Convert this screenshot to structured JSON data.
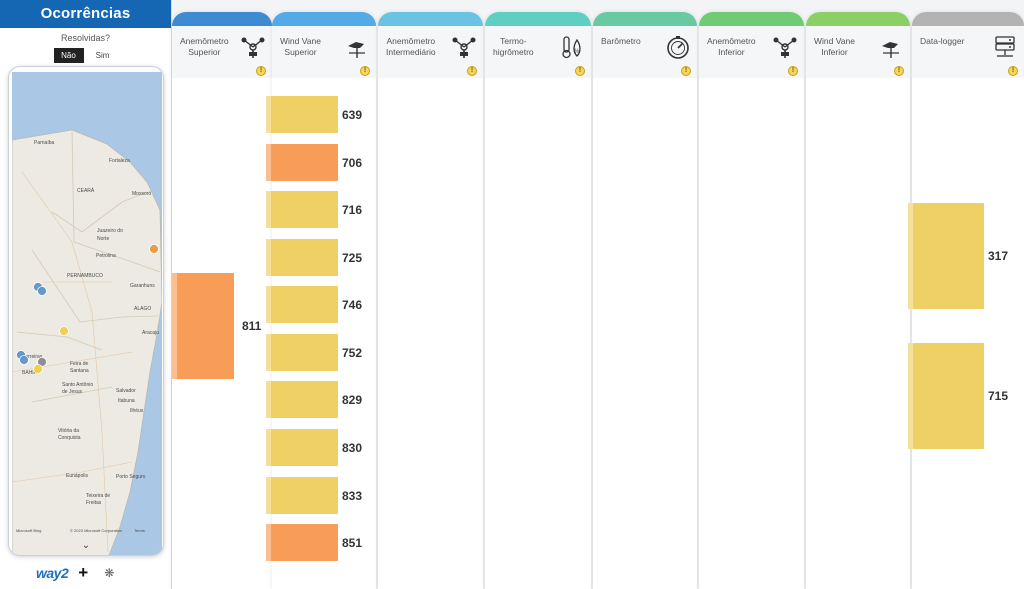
{
  "panel": {
    "title": "Ocorrências",
    "filter_label": "Resolvidas?",
    "toggle": {
      "no": "Não",
      "yes": "Sim"
    },
    "brand": "way2"
  },
  "map": {
    "labels": [
      "Parnaíba",
      "Fortaleza",
      "Mossoró",
      "CEARÁ",
      "Juazeiro do",
      "Norte",
      "PERNAMBUCO",
      "Garanhuns",
      "Petrolina",
      "ALAGO",
      "Aracaju",
      "Feira de",
      "Santana",
      "Santo Antônio",
      "de Jesus",
      "Salvador",
      "Vitória da",
      "Conquista",
      "Eunápolis",
      "Teixeira de",
      "Freitas",
      "Porto Seguro",
      "BAHIA",
      "Barreiras",
      "Ilhéus",
      "Itabuna",
      "Microsoft Bing",
      "© 2023 Microsoft Corporation",
      "Terms"
    ],
    "markers": [
      {
        "color": "#e6993c"
      },
      {
        "color": "#5e94c8"
      },
      {
        "color": "#5e94c8"
      },
      {
        "color": "#f0cf4a"
      },
      {
        "color": "#5e94c8"
      },
      {
        "color": "#5e94c8"
      },
      {
        "color": "#8b8b8b"
      },
      {
        "color": "#f0cf4a"
      }
    ]
  },
  "columns": [
    {
      "id": "anem-sup",
      "label": "Anemômetro\nSuperior",
      "strip": "#3f8bd1",
      "icon": "anemometer-icon",
      "bars": [
        {
          "value": 811,
          "color": "orange"
        }
      ]
    },
    {
      "id": "wv-sup",
      "label": "Wind Vane\nSuperior",
      "strip": "#52aae6",
      "icon": "wind-vane-icon",
      "bars": [
        {
          "value": 639,
          "color": "yellow"
        },
        {
          "value": 706,
          "color": "orange"
        },
        {
          "value": 716,
          "color": "yellow"
        },
        {
          "value": 725,
          "color": "yellow"
        },
        {
          "value": 746,
          "color": "yellow"
        },
        {
          "value": 752,
          "color": "yellow"
        },
        {
          "value": 829,
          "color": "yellow"
        },
        {
          "value": 830,
          "color": "yellow"
        },
        {
          "value": 833,
          "color": "yellow"
        },
        {
          "value": 851,
          "color": "orange"
        }
      ]
    },
    {
      "id": "anem-int",
      "label": "Anemômetro\nIntermediário",
      "strip": "#6bc3e3",
      "icon": "anemometer-icon",
      "bars": []
    },
    {
      "id": "termo",
      "label": "Termo-\nhigrômetro",
      "strip": "#5fcfc4",
      "icon": "thermo-hygrometer-icon",
      "bars": []
    },
    {
      "id": "baro",
      "label": "Barômetro",
      "strip": "#69c9a3",
      "icon": "barometer-icon",
      "bars": []
    },
    {
      "id": "anem-inf",
      "label": "Anemômetro\nInferior",
      "strip": "#6fcb74",
      "icon": "anemometer-icon",
      "bars": []
    },
    {
      "id": "wv-inf",
      "label": "Wind Vane\nInferior",
      "strip": "#8bd066",
      "icon": "wind-vane-icon",
      "bars": []
    },
    {
      "id": "datalogger",
      "label": "Data-logger",
      "strip": "#b3b3b3",
      "icon": "server-icon",
      "bars": [
        {
          "value": 317,
          "color": "yellow"
        },
        {
          "value": 715,
          "color": "yellow"
        }
      ]
    }
  ],
  "warning_icon_label": "!"
}
